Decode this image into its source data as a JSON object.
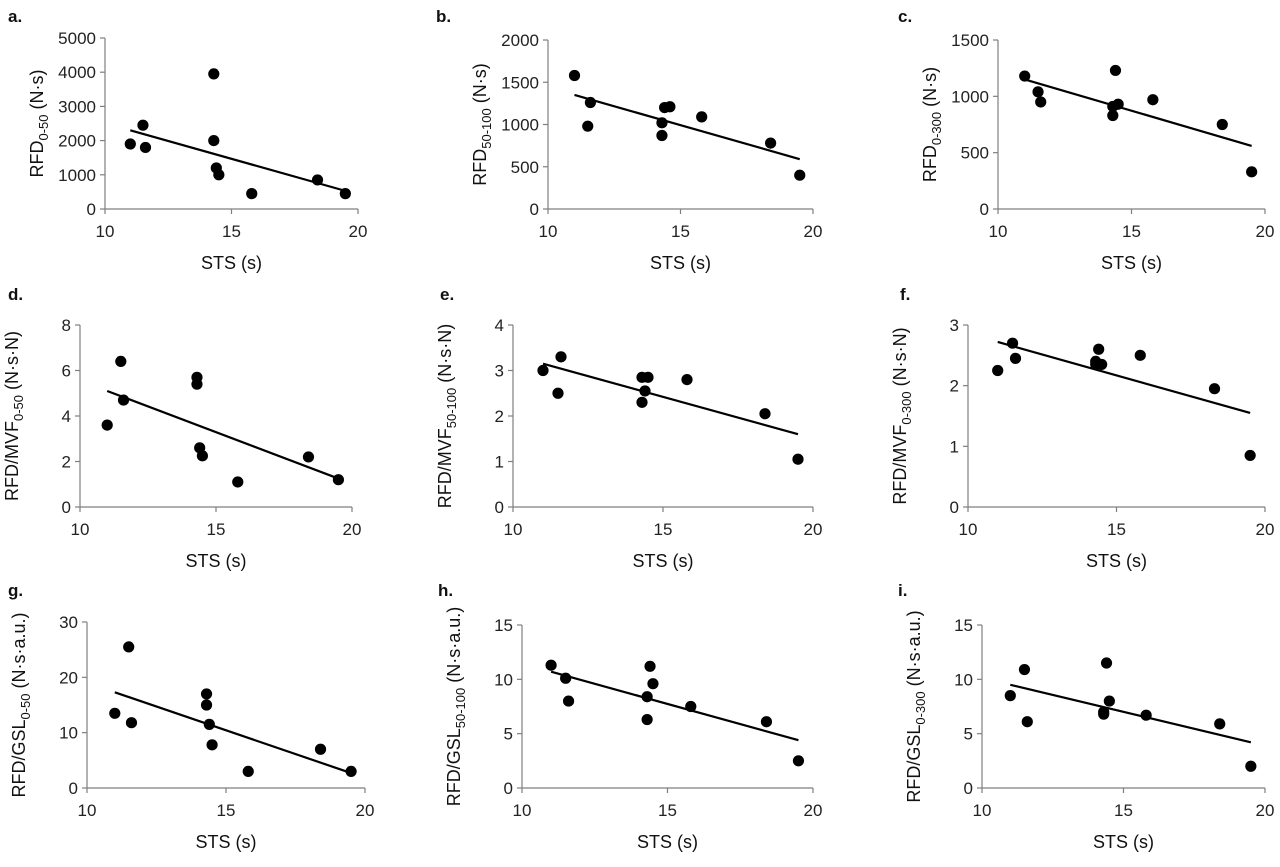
{
  "chart_data": [
    {
      "type": "scatter",
      "panel_label": "a.",
      "ylabel": "RFD",
      "ylabel_sub": "0-50",
      "ylabel_unit": " (N·s)",
      "xlabel": "STS (s)",
      "xlim": [
        10,
        20
      ],
      "xticks": [
        10,
        15,
        20
      ],
      "ylim": [
        0,
        5000
      ],
      "yticks": [
        0,
        1000,
        2000,
        3000,
        4000,
        5000
      ],
      "x": [
        11.0,
        11.5,
        11.6,
        14.3,
        14.3,
        14.4,
        14.5,
        15.8,
        18.4,
        19.5
      ],
      "y": [
        1900,
        2450,
        1800,
        3950,
        2000,
        1200,
        1000,
        450,
        850,
        450
      ],
      "trendline": {
        "x": [
          11.0,
          19.5
        ],
        "y": [
          2300,
          530
        ]
      }
    },
    {
      "type": "scatter",
      "panel_label": "b.",
      "ylabel": "RFD",
      "ylabel_sub": "50-100",
      "ylabel_unit": " (N·s)",
      "xlabel": "STS (s)",
      "xlim": [
        10,
        20
      ],
      "xticks": [
        10,
        15,
        20
      ],
      "ylim": [
        0,
        2000
      ],
      "yticks": [
        0,
        500,
        1000,
        1500,
        2000
      ],
      "x": [
        11.0,
        11.5,
        11.6,
        14.3,
        14.3,
        14.4,
        14.6,
        15.8,
        18.4,
        19.5
      ],
      "y": [
        1580,
        980,
        1260,
        870,
        1020,
        1200,
        1210,
        1090,
        780,
        400
      ],
      "trendline": {
        "x": [
          11.0,
          19.5
        ],
        "y": [
          1350,
          590
        ]
      }
    },
    {
      "type": "scatter",
      "panel_label": "c.",
      "ylabel": "RFD",
      "ylabel_sub": "0-300",
      "ylabel_unit": " (N·s)",
      "xlabel": "STS (s)",
      "xlim": [
        10,
        20
      ],
      "xticks": [
        10,
        15,
        20
      ],
      "ylim": [
        0,
        1500
      ],
      "yticks": [
        0,
        500,
        1000,
        1500
      ],
      "x": [
        11.0,
        11.5,
        11.6,
        14.3,
        14.3,
        14.4,
        14.5,
        15.8,
        18.4,
        19.5
      ],
      "y": [
        1180,
        1040,
        950,
        830,
        910,
        1230,
        930,
        970,
        750,
        330
      ],
      "trendline": {
        "x": [
          11.0,
          19.5
        ],
        "y": [
          1150,
          560
        ]
      }
    },
    {
      "type": "scatter",
      "panel_label": "d.",
      "ylabel": "RFD/MVF",
      "ylabel_sub": "0-50",
      "ylabel_unit": " (N·s·N)",
      "xlabel": "STS (s)",
      "xlim": [
        10,
        20
      ],
      "xticks": [
        10,
        15,
        20
      ],
      "ylim": [
        0,
        8
      ],
      "yticks": [
        0,
        2,
        4,
        6,
        8
      ],
      "x": [
        11.0,
        11.5,
        11.6,
        14.3,
        14.3,
        14.4,
        14.5,
        15.8,
        18.4,
        19.5
      ],
      "y": [
        3.6,
        6.4,
        4.7,
        5.7,
        5.4,
        2.6,
        2.25,
        1.1,
        2.2,
        1.2
      ],
      "trendline": {
        "x": [
          11.0,
          19.5
        ],
        "y": [
          5.1,
          1.25
        ]
      }
    },
    {
      "type": "scatter",
      "panel_label": "e.",
      "ylabel": "RFD/MVF",
      "ylabel_sub": "50-100",
      "ylabel_unit": " (N·s·N)",
      "xlabel": "STS (s)",
      "xlim": [
        10,
        20
      ],
      "xticks": [
        10,
        15,
        20
      ],
      "ylim": [
        0,
        4
      ],
      "yticks": [
        0,
        1,
        2,
        3,
        4
      ],
      "x": [
        11.0,
        11.5,
        11.6,
        14.3,
        14.3,
        14.4,
        14.5,
        15.8,
        18.4,
        19.5
      ],
      "y": [
        3.0,
        2.5,
        3.3,
        2.3,
        2.85,
        2.55,
        2.85,
        2.8,
        2.05,
        1.05
      ],
      "trendline": {
        "x": [
          11.0,
          19.5
        ],
        "y": [
          3.15,
          1.6
        ]
      }
    },
    {
      "type": "scatter",
      "panel_label": "f.",
      "ylabel": "RFD/MVF",
      "ylabel_sub": "0-300",
      "ylabel_unit": " (N·s·N)",
      "xlabel": "STS (s)",
      "xlim": [
        10,
        20
      ],
      "xticks": [
        10,
        15,
        20
      ],
      "ylim": [
        0,
        3
      ],
      "yticks": [
        0,
        1,
        2,
        3
      ],
      "x": [
        11.0,
        11.5,
        11.6,
        14.3,
        14.3,
        14.4,
        14.5,
        15.8,
        18.3,
        19.5
      ],
      "y": [
        2.25,
        2.7,
        2.45,
        2.35,
        2.4,
        2.6,
        2.35,
        2.5,
        1.95,
        0.85
      ],
      "trendline": {
        "x": [
          11.0,
          19.5
        ],
        "y": [
          2.72,
          1.55
        ]
      }
    },
    {
      "type": "scatter",
      "panel_label": "g.",
      "ylabel": "RFD/GSL",
      "ylabel_sub": "0-50",
      "ylabel_unit": " (N·s·a.u.)",
      "xlabel": "STS (s)",
      "xlim": [
        10,
        20
      ],
      "xticks": [
        10,
        15,
        20
      ],
      "ylim": [
        0,
        30
      ],
      "yticks": [
        0,
        10,
        20,
        30
      ],
      "x": [
        11.0,
        11.5,
        11.6,
        14.3,
        14.3,
        14.4,
        14.5,
        15.8,
        18.4,
        19.5
      ],
      "y": [
        13.5,
        25.5,
        11.8,
        17.0,
        15.0,
        11.5,
        7.8,
        3.0,
        7.0,
        3.0
      ],
      "trendline": {
        "x": [
          11.0,
          19.5
        ],
        "y": [
          17.3,
          2.7
        ]
      }
    },
    {
      "type": "scatter",
      "panel_label": "h.",
      "ylabel": "RFD/GSL",
      "ylabel_sub": "50-100",
      "ylabel_unit": " (N·s·a.u.)",
      "xlabel": "STS (s)",
      "xlim": [
        10,
        20
      ],
      "xticks": [
        10,
        15,
        20
      ],
      "ylim": [
        0,
        15
      ],
      "yticks": [
        0,
        5,
        10,
        15
      ],
      "x": [
        11.0,
        11.5,
        11.6,
        14.3,
        14.3,
        14.4,
        14.5,
        15.8,
        18.4,
        19.5
      ],
      "y": [
        11.3,
        10.1,
        8.0,
        6.3,
        8.4,
        11.2,
        9.6,
        7.5,
        6.1,
        2.5
      ],
      "trendline": {
        "x": [
          11.0,
          19.5
        ],
        "y": [
          10.7,
          4.4
        ]
      }
    },
    {
      "type": "scatter",
      "panel_label": "i.",
      "ylabel": "RFD/GSL",
      "ylabel_sub": "0-300",
      "ylabel_unit": " (N·s·a.u.)",
      "xlabel": "STS (s)",
      "xlim": [
        10,
        20
      ],
      "xticks": [
        10,
        15,
        20
      ],
      "ylim": [
        0,
        15
      ],
      "yticks": [
        0,
        5,
        10,
        15
      ],
      "x": [
        11.0,
        11.5,
        11.6,
        14.3,
        14.3,
        14.4,
        14.5,
        15.8,
        18.4,
        19.5
      ],
      "y": [
        8.5,
        10.9,
        6.1,
        6.8,
        7.0,
        11.5,
        8.0,
        6.7,
        5.9,
        2.0
      ],
      "trendline": {
        "x": [
          11.0,
          19.5
        ],
        "y": [
          9.5,
          4.2
        ]
      }
    }
  ]
}
